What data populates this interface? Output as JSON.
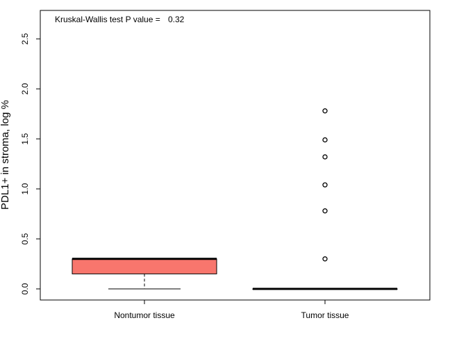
{
  "chart_data": {
    "type": "boxplot",
    "title": "",
    "annotation": {
      "label": "Kruskal-Wallis test P value =",
      "value": "0.32"
    },
    "xlabel": "",
    "ylabel": "PDL1+ in stroma, log %",
    "ylim": [
      -0.1,
      2.7
    ],
    "yticks": [
      0.0,
      0.5,
      1.0,
      1.5,
      2.0,
      2.5
    ],
    "ytick_labels": [
      "0.0",
      "0.5",
      "1.0",
      "1.5",
      "2.0",
      "2.5"
    ],
    "grid": false,
    "categories": [
      "Nontumor tissue",
      "Tumor tissue"
    ],
    "boxes": [
      {
        "category": "Nontumor tissue",
        "whisker_low": 0.0,
        "q1": 0.15,
        "median": 0.3,
        "q3": 0.3,
        "whisker_high": 0.3,
        "outliers": [],
        "fill": "#f8766d"
      },
      {
        "category": "Tumor tissue",
        "whisker_low": 0.0,
        "q1": 0.0,
        "median": 0.0,
        "q3": 0.0,
        "whisker_high": 0.0,
        "outliers": [
          0.3,
          0.78,
          1.04,
          1.32,
          1.49,
          1.78
        ],
        "fill": "#ffffff"
      }
    ]
  }
}
